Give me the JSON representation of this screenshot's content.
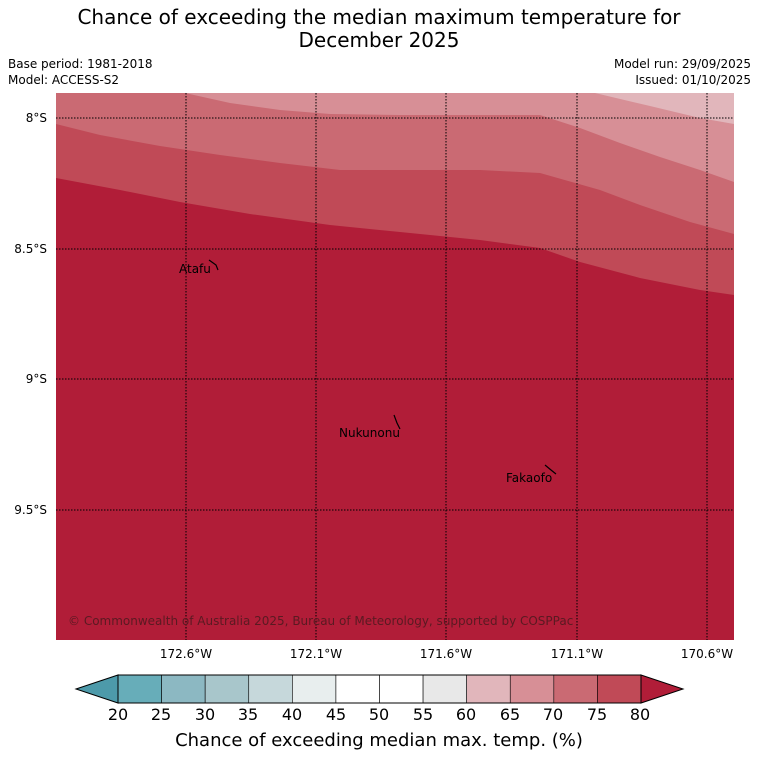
{
  "title_line1": "Chance of exceeding the median maximum temperature for",
  "title_line2": "December 2025",
  "meta": {
    "base_period": "Base period: 1981-2018",
    "model": "Model: ACCESS-S2",
    "model_run": "Model run: 29/09/2025",
    "issued": "Issued: 01/10/2025"
  },
  "lat_labels": [
    "8°S",
    "8.5°S",
    "9°S",
    "9.5°S"
  ],
  "lon_labels": [
    "172.6°W",
    "172.1°W",
    "171.6°W",
    "171.1°W",
    "170.6°W"
  ],
  "places": {
    "atafu": "Atafu",
    "nukunonu": "Nukunonu",
    "fakaofo": "Fakaofo"
  },
  "copyright": "© Commonwealth of Australia 2025, Bureau of Meteorology, supported by COSPPac",
  "colorbar": {
    "title": "Chance of exceeding median max. temp. (%)",
    "ticks": [
      "20",
      "25",
      "30",
      "35",
      "40",
      "45",
      "50",
      "55",
      "60",
      "65",
      "70",
      "75",
      "80"
    ],
    "colors": [
      "#67adb9",
      "#8cb8c2",
      "#a8c6cb",
      "#c6d8db",
      "#e8eeee",
      "#ffffff",
      "#ffffff",
      "#e8e8e8",
      "#e1b6bb",
      "#d78f96",
      "#ca6a73",
      "#c04a57"
    ],
    "under_color": "#4d9aaa",
    "over_color": "#b11d38"
  },
  "map_colors": {
    "band_60_65": "#e1b6bb",
    "band_65_70": "#d78f96",
    "band_70_75": "#ca6a73",
    "band_75_80": "#c04a57",
    "band_80_plus": "#b11d38"
  }
}
